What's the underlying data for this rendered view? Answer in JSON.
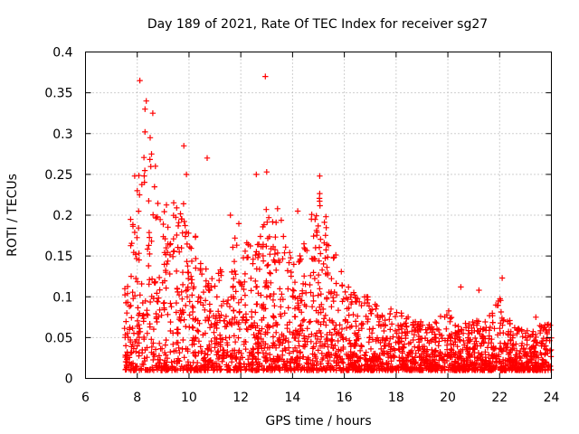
{
  "chart_data": {
    "type": "scatter",
    "title": "Day 189 of 2021, Rate Of TEC Index for receiver sg27",
    "xlabel": "GPS time / hours",
    "ylabel": "ROTI / TECUs",
    "xlim": [
      6,
      24
    ],
    "ylim": [
      0,
      0.4
    ],
    "xticks": [
      6,
      8,
      10,
      12,
      14,
      16,
      18,
      20,
      22,
      24
    ],
    "yticks": [
      0,
      0.05,
      0.1,
      0.15,
      0.2,
      0.25,
      0.3,
      0.35,
      0.4
    ],
    "xtick_labels": [
      "6",
      "8",
      "10",
      "12",
      "14",
      "16",
      "18",
      "20",
      "22",
      "24"
    ],
    "ytick_labels": [
      "0",
      "0.05",
      "0.1",
      "0.15",
      "0.2",
      "0.25",
      "0.3",
      "0.35",
      "0.4"
    ],
    "grid": true,
    "marker": "+",
    "series": [
      {
        "name": "ROTI",
        "color": "#ff0000",
        "envelope": {
          "x": [
            7.5,
            7.7,
            8.0,
            8.2,
            8.5,
            9.0,
            9.5,
            10.0,
            10.5,
            11.0,
            11.5,
            12.0,
            12.5,
            13.0,
            13.5,
            14.0,
            14.5,
            15.0,
            15.5,
            16.0,
            16.5,
            17.0,
            17.5,
            18.0,
            18.5,
            19.0,
            19.5,
            20.0,
            20.5,
            21.0,
            21.5,
            22.0,
            22.5,
            23.0,
            23.5,
            24.0
          ],
          "y": [
            0.13,
            0.2,
            0.23,
            0.3,
            0.27,
            0.22,
            0.22,
            0.21,
            0.14,
            0.13,
            0.14,
            0.2,
            0.15,
            0.23,
            0.22,
            0.14,
            0.17,
            0.24,
            0.17,
            0.12,
            0.1,
            0.1,
            0.08,
            0.085,
            0.08,
            0.07,
            0.07,
            0.085,
            0.07,
            0.07,
            0.075,
            0.1,
            0.065,
            0.06,
            0.065,
            0.07
          ],
          "floor": 0.01
        },
        "outliers": [
          [
            8.1,
            0.365
          ],
          [
            12.95,
            0.37
          ],
          [
            8.35,
            0.34
          ],
          [
            8.3,
            0.33
          ],
          [
            8.6,
            0.325
          ],
          [
            8.3,
            0.302
          ],
          [
            8.5,
            0.295
          ],
          [
            9.8,
            0.285
          ],
          [
            10.7,
            0.27
          ],
          [
            12.6,
            0.25
          ],
          [
            13.0,
            0.253
          ],
          [
            15.05,
            0.248
          ],
          [
            8.55,
            0.275
          ],
          [
            7.9,
            0.248
          ],
          [
            20.5,
            0.112
          ],
          [
            21.2,
            0.108
          ],
          [
            22.1,
            0.123
          ],
          [
            21.85,
            0.09
          ],
          [
            17.8,
            0.085
          ],
          [
            23.4,
            0.075
          ],
          [
            9.9,
            0.25
          ],
          [
            8.0,
            0.23
          ],
          [
            8.7,
            0.26
          ],
          [
            14.2,
            0.205
          ],
          [
            11.6,
            0.2
          ]
        ]
      }
    ]
  }
}
